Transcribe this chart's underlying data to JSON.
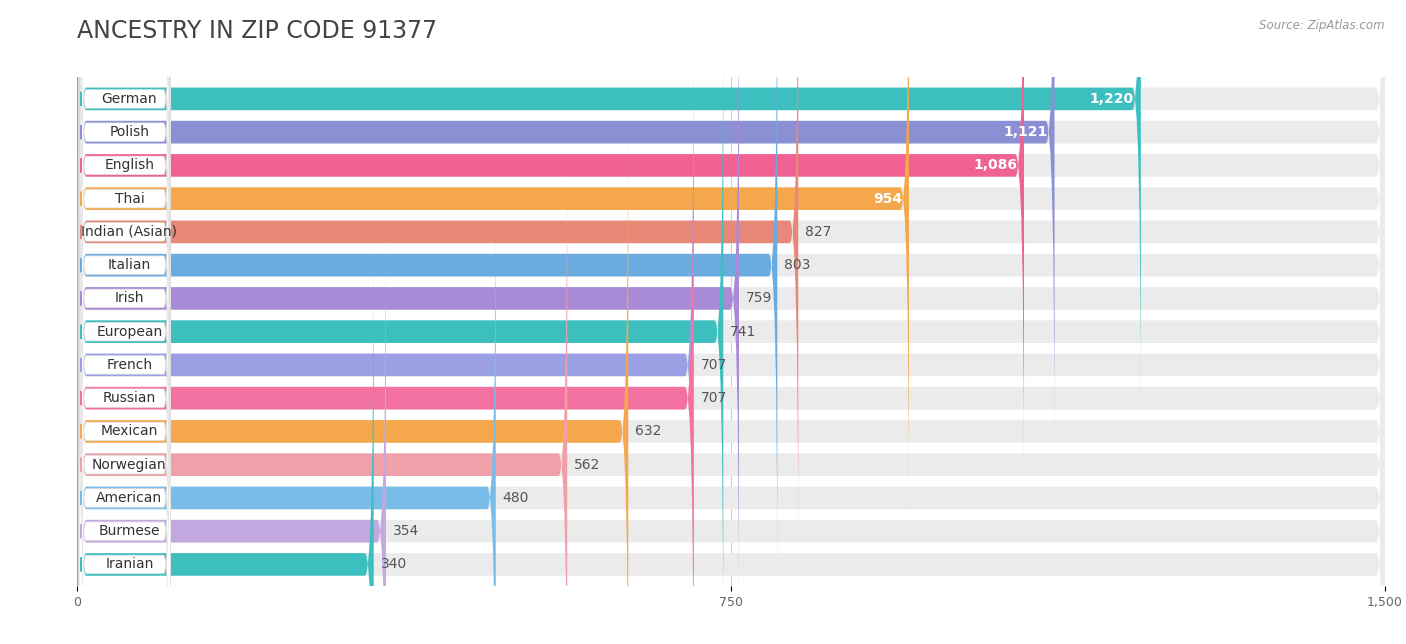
{
  "title": "ANCESTRY IN ZIP CODE 91377",
  "source": "Source: ZipAtlas.com",
  "categories": [
    "German",
    "Polish",
    "English",
    "Thai",
    "Indian (Asian)",
    "Italian",
    "Irish",
    "European",
    "French",
    "Russian",
    "Mexican",
    "Norwegian",
    "American",
    "Burmese",
    "Iranian"
  ],
  "values": [
    1220,
    1121,
    1086,
    954,
    827,
    803,
    759,
    741,
    707,
    707,
    632,
    562,
    480,
    354,
    340
  ],
  "colors": [
    "#3DBFBF",
    "#8B8FD4",
    "#F06292",
    "#F5A84B",
    "#E88878",
    "#6AABE0",
    "#A98AD6",
    "#3DBFBF",
    "#9B9FE4",
    "#F472A2",
    "#F5A84B",
    "#F0A0A8",
    "#7ABCE8",
    "#C3A8E0",
    "#3DBFBF"
  ],
  "bar_bg_color": "#EBEBEB",
  "bg_color": "#FFFFFF",
  "xlim": [
    0,
    1500
  ],
  "xticks": [
    0,
    750,
    1500
  ],
  "title_fontsize": 17,
  "label_fontsize": 10,
  "value_fontsize": 10
}
